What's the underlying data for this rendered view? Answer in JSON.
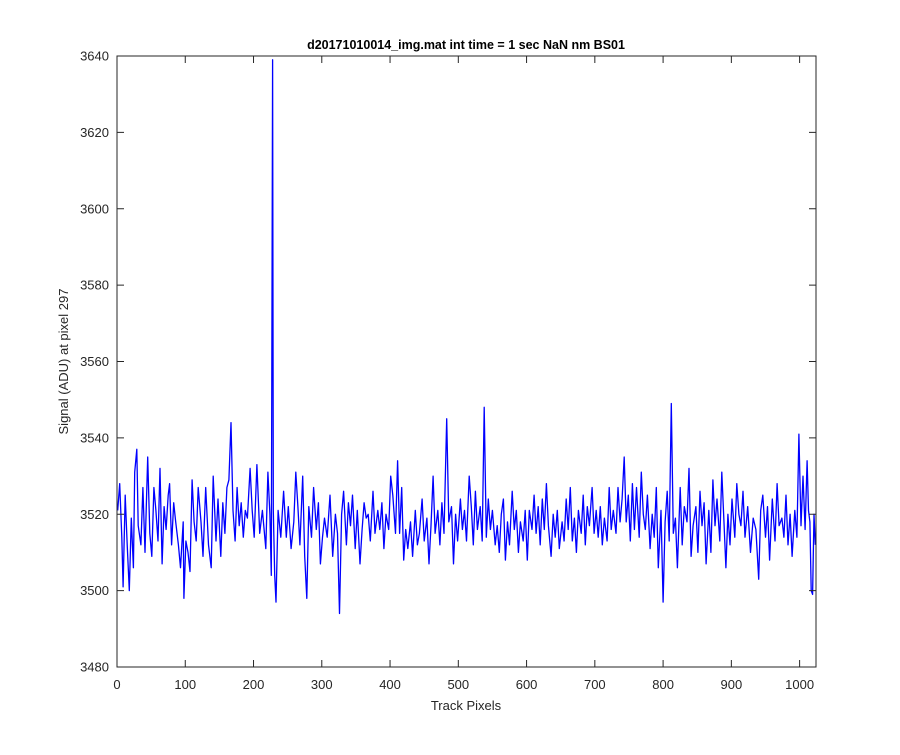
{
  "chart_data": {
    "type": "line",
    "title": "d20171010014_img.mat int time = 1 sec  NaN nm BS01",
    "xlabel": "Track Pixels",
    "ylabel": "Signal (ADU) at pixel 297",
    "xlim": [
      0,
      1024
    ],
    "ylim": [
      3480,
      3640
    ],
    "xticks": [
      0,
      100,
      200,
      300,
      400,
      500,
      600,
      700,
      800,
      900,
      1000
    ],
    "yticks": [
      3480,
      3500,
      3520,
      3540,
      3560,
      3580,
      3600,
      3620,
      3640
    ],
    "grid": false,
    "legend": "none",
    "series": [
      {
        "color": "#0000ff",
        "points": [
          [
            1,
            3521
          ],
          [
            4,
            3528
          ],
          [
            7,
            3514
          ],
          [
            9,
            3501
          ],
          [
            12,
            3525
          ],
          [
            15,
            3512
          ],
          [
            18,
            3500
          ],
          [
            21,
            3519
          ],
          [
            24,
            3506
          ],
          [
            26,
            3531
          ],
          [
            29,
            3537
          ],
          [
            31,
            3517
          ],
          [
            35,
            3512
          ],
          [
            38,
            3527
          ],
          [
            41,
            3510
          ],
          [
            45,
            3535
          ],
          [
            48,
            3515
          ],
          [
            51,
            3509
          ],
          [
            54,
            3527
          ],
          [
            57,
            3521
          ],
          [
            60,
            3513
          ],
          [
            63,
            3532
          ],
          [
            66,
            3507
          ],
          [
            69,
            3522
          ],
          [
            72,
            3516
          ],
          [
            75,
            3525
          ],
          [
            77,
            3528
          ],
          [
            80,
            3512
          ],
          [
            83,
            3523
          ],
          [
            86,
            3518
          ],
          [
            90,
            3512
          ],
          [
            93,
            3506
          ],
          [
            97,
            3518
          ],
          [
            98,
            3498
          ],
          [
            101,
            3513
          ],
          [
            104,
            3510
          ],
          [
            107,
            3505
          ],
          [
            110,
            3529
          ],
          [
            113,
            3518
          ],
          [
            116,
            3513
          ],
          [
            119,
            3527
          ],
          [
            123,
            3518
          ],
          [
            126,
            3509
          ],
          [
            130,
            3527
          ],
          [
            134,
            3512
          ],
          [
            138,
            3506
          ],
          [
            141,
            3530
          ],
          [
            145,
            3513
          ],
          [
            148,
            3524
          ],
          [
            152,
            3509
          ],
          [
            155,
            3523
          ],
          [
            158,
            3515
          ],
          [
            161,
            3527
          ],
          [
            164,
            3529
          ],
          [
            167,
            3544
          ],
          [
            170,
            3521
          ],
          [
            173,
            3513
          ],
          [
            176,
            3527
          ],
          [
            179,
            3517
          ],
          [
            182,
            3523
          ],
          [
            185,
            3514
          ],
          [
            188,
            3521
          ],
          [
            191,
            3519
          ],
          [
            195,
            3532
          ],
          [
            198,
            3521
          ],
          [
            201,
            3514
          ],
          [
            205,
            3533
          ],
          [
            209,
            3515
          ],
          [
            213,
            3521
          ],
          [
            218,
            3511
          ],
          [
            221,
            3531
          ],
          [
            224,
            3520
          ],
          [
            226,
            3504
          ],
          [
            228,
            3639
          ],
          [
            229,
            3521
          ],
          [
            231,
            3504
          ],
          [
            233,
            3497
          ],
          [
            236,
            3521
          ],
          [
            240,
            3514
          ],
          [
            244,
            3526
          ],
          [
            248,
            3514
          ],
          [
            251,
            3522
          ],
          [
            255,
            3511
          ],
          [
            259,
            3518
          ],
          [
            262,
            3531
          ],
          [
            265,
            3522
          ],
          [
            268,
            3512
          ],
          [
            272,
            3530
          ],
          [
            275,
            3509
          ],
          [
            278,
            3498
          ],
          [
            281,
            3522
          ],
          [
            285,
            3514
          ],
          [
            288,
            3527
          ],
          [
            292,
            3516
          ],
          [
            295,
            3523
          ],
          [
            298,
            3507
          ],
          [
            301,
            3514
          ],
          [
            304,
            3519
          ],
          [
            308,
            3514
          ],
          [
            312,
            3525
          ],
          [
            316,
            3509
          ],
          [
            320,
            3520
          ],
          [
            323,
            3515
          ],
          [
            326,
            3494
          ],
          [
            329,
            3520
          ],
          [
            332,
            3526
          ],
          [
            336,
            3512
          ],
          [
            339,
            3523
          ],
          [
            342,
            3517
          ],
          [
            345,
            3525
          ],
          [
            349,
            3511
          ],
          [
            352,
            3521
          ],
          [
            356,
            3507
          ],
          [
            359,
            3516
          ],
          [
            362,
            3523
          ],
          [
            365,
            3519
          ],
          [
            368,
            3520
          ],
          [
            371,
            3513
          ],
          [
            375,
            3526
          ],
          [
            378,
            3515
          ],
          [
            382,
            3521
          ],
          [
            385,
            3516
          ],
          [
            388,
            3523
          ],
          [
            391,
            3511
          ],
          [
            394,
            3520
          ],
          [
            398,
            3516
          ],
          [
            401,
            3530
          ],
          [
            404,
            3525
          ],
          [
            408,
            3515
          ],
          [
            411,
            3534
          ],
          [
            414,
            3515
          ],
          [
            417,
            3527
          ],
          [
            420,
            3508
          ],
          [
            423,
            3516
          ],
          [
            426,
            3511
          ],
          [
            430,
            3518
          ],
          [
            433,
            3509
          ],
          [
            437,
            3521
          ],
          [
            440,
            3512
          ],
          [
            443,
            3515
          ],
          [
            447,
            3524
          ],
          [
            450,
            3513
          ],
          [
            454,
            3519
          ],
          [
            457,
            3507
          ],
          [
            460,
            3517
          ],
          [
            463,
            3530
          ],
          [
            466,
            3515
          ],
          [
            470,
            3521
          ],
          [
            473,
            3512
          ],
          [
            476,
            3523
          ],
          [
            479,
            3515
          ],
          [
            483,
            3545
          ],
          [
            486,
            3518
          ],
          [
            490,
            3522
          ],
          [
            493,
            3507
          ],
          [
            496,
            3520
          ],
          [
            499,
            3513
          ],
          [
            503,
            3524
          ],
          [
            506,
            3516
          ],
          [
            509,
            3521
          ],
          [
            512,
            3513
          ],
          [
            516,
            3530
          ],
          [
            519,
            3522
          ],
          [
            522,
            3512
          ],
          [
            525,
            3526
          ],
          [
            528,
            3516
          ],
          [
            532,
            3522
          ],
          [
            535,
            3513
          ],
          [
            538,
            3548
          ],
          [
            541,
            3514
          ],
          [
            544,
            3524
          ],
          [
            547,
            3516
          ],
          [
            550,
            3521
          ],
          [
            554,
            3512
          ],
          [
            557,
            3517
          ],
          [
            560,
            3510
          ],
          [
            563,
            3520
          ],
          [
            566,
            3524
          ],
          [
            569,
            3508
          ],
          [
            572,
            3518
          ],
          [
            575,
            3512
          ],
          [
            579,
            3526
          ],
          [
            582,
            3516
          ],
          [
            585,
            3521
          ],
          [
            588,
            3510
          ],
          [
            591,
            3518
          ],
          [
            595,
            3513
          ],
          [
            598,
            3521
          ],
          [
            601,
            3508
          ],
          [
            604,
            3521
          ],
          [
            608,
            3516
          ],
          [
            611,
            3525
          ],
          [
            614,
            3515
          ],
          [
            617,
            3522
          ],
          [
            620,
            3512
          ],
          [
            623,
            3524
          ],
          [
            626,
            3516
          ],
          [
            629,
            3528
          ],
          [
            632,
            3517
          ],
          [
            636,
            3509
          ],
          [
            639,
            3520
          ],
          [
            642,
            3514
          ],
          [
            645,
            3521
          ],
          [
            648,
            3511
          ],
          [
            652,
            3518
          ],
          [
            655,
            3513
          ],
          [
            658,
            3524
          ],
          [
            661,
            3516
          ],
          [
            664,
            3527
          ],
          [
            667,
            3513
          ],
          [
            670,
            3519
          ],
          [
            673,
            3510
          ],
          [
            676,
            3521
          ],
          [
            680,
            3515
          ],
          [
            683,
            3525
          ],
          [
            686,
            3512
          ],
          [
            689,
            3522
          ],
          [
            692,
            3517
          ],
          [
            696,
            3527
          ],
          [
            699,
            3515
          ],
          [
            702,
            3521
          ],
          [
            705,
            3514
          ],
          [
            708,
            3522
          ],
          [
            711,
            3512
          ],
          [
            714,
            3519
          ],
          [
            718,
            3513
          ],
          [
            721,
            3527
          ],
          [
            724,
            3516
          ],
          [
            727,
            3521
          ],
          [
            731,
            3515
          ],
          [
            734,
            3527
          ],
          [
            737,
            3518
          ],
          [
            740,
            3524
          ],
          [
            743,
            3535
          ],
          [
            746,
            3518
          ],
          [
            749,
            3525
          ],
          [
            752,
            3513
          ],
          [
            755,
            3528
          ],
          [
            758,
            3516
          ],
          [
            761,
            3527
          ],
          [
            765,
            3514
          ],
          [
            768,
            3531
          ],
          [
            771,
            3520
          ],
          [
            774,
            3516
          ],
          [
            777,
            3525
          ],
          [
            781,
            3511
          ],
          [
            784,
            3520
          ],
          [
            787,
            3514
          ],
          [
            790,
            3527
          ],
          [
            793,
            3506
          ],
          [
            797,
            3521
          ],
          [
            800,
            3497
          ],
          [
            803,
            3518
          ],
          [
            806,
            3526
          ],
          [
            809,
            3513
          ],
          [
            812,
            3549
          ],
          [
            815,
            3515
          ],
          [
            818,
            3519
          ],
          [
            821,
            3506
          ],
          [
            825,
            3527
          ],
          [
            828,
            3512
          ],
          [
            831,
            3522
          ],
          [
            835,
            3518
          ],
          [
            838,
            3532
          ],
          [
            841,
            3509
          ],
          [
            844,
            3517
          ],
          [
            848,
            3522
          ],
          [
            851,
            3510
          ],
          [
            854,
            3526
          ],
          [
            857,
            3517
          ],
          [
            860,
            3523
          ],
          [
            863,
            3507
          ],
          [
            867,
            3521
          ],
          [
            870,
            3510
          ],
          [
            873,
            3529
          ],
          [
            876,
            3517
          ],
          [
            879,
            3524
          ],
          [
            883,
            3513
          ],
          [
            886,
            3531
          ],
          [
            889,
            3519
          ],
          [
            892,
            3506
          ],
          [
            895,
            3520
          ],
          [
            898,
            3512
          ],
          [
            901,
            3524
          ],
          [
            905,
            3514
          ],
          [
            908,
            3528
          ],
          [
            911,
            3520
          ],
          [
            914,
            3517
          ],
          [
            917,
            3526
          ],
          [
            920,
            3514
          ],
          [
            924,
            3522
          ],
          [
            928,
            3510
          ],
          [
            932,
            3519
          ],
          [
            936,
            3516
          ],
          [
            940,
            3503
          ],
          [
            943,
            3521
          ],
          [
            946,
            3525
          ],
          [
            950,
            3514
          ],
          [
            953,
            3522
          ],
          [
            956,
            3508
          ],
          [
            960,
            3524
          ],
          [
            964,
            3513
          ],
          [
            967,
            3528
          ],
          [
            970,
            3517
          ],
          [
            974,
            3519
          ],
          [
            977,
            3514
          ],
          [
            980,
            3525
          ],
          [
            983,
            3512
          ],
          [
            986,
            3520
          ],
          [
            989,
            3509
          ],
          [
            993,
            3521
          ],
          [
            996,
            3514
          ],
          [
            999,
            3541
          ],
          [
            1002,
            3517
          ],
          [
            1005,
            3530
          ],
          [
            1008,
            3516
          ],
          [
            1011,
            3534
          ],
          [
            1013,
            3521
          ],
          [
            1015,
            3518
          ],
          [
            1017,
            3500
          ],
          [
            1019,
            3499
          ],
          [
            1021,
            3520
          ],
          [
            1023,
            3512
          ]
        ]
      }
    ]
  }
}
